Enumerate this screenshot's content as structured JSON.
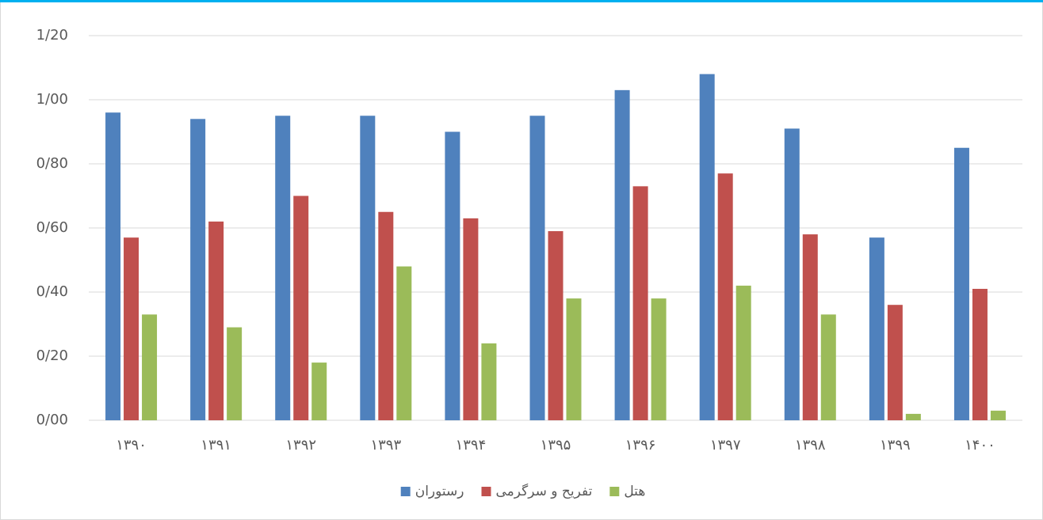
{
  "chart_data": {
    "type": "bar",
    "categories": [
      "۱۳۹۰",
      "۱۳۹۱",
      "۱۳۹۲",
      "۱۳۹۳",
      "۱۳۹۴",
      "۱۳۹۵",
      "۱۳۹۶",
      "۱۳۹۷",
      "۱۳۹۸",
      "۱۳۹۹",
      "۱۴۰۰"
    ],
    "series": [
      {
        "name": "رستوران",
        "color": "#4f81bd",
        "values": [
          0.96,
          0.94,
          0.95,
          0.95,
          0.9,
          0.95,
          1.03,
          1.08,
          0.91,
          0.57,
          0.85
        ]
      },
      {
        "name": "تفریح و سرگرمی",
        "color": "#c0504d",
        "values": [
          0.57,
          0.62,
          0.7,
          0.65,
          0.63,
          0.59,
          0.73,
          0.77,
          0.58,
          0.36,
          0.41
        ]
      },
      {
        "name": "هتل",
        "color": "#9bbb59",
        "values": [
          0.33,
          0.29,
          0.18,
          0.48,
          0.24,
          0.38,
          0.38,
          0.42,
          0.33,
          0.02,
          0.03
        ]
      }
    ],
    "ylim": [
      0,
      1.2
    ],
    "yticks": [
      {
        "value": 0,
        "label": "0/00"
      },
      {
        "value": 0.2,
        "label": "0/20"
      },
      {
        "value": 0.4,
        "label": "0/40"
      },
      {
        "value": 0.6,
        "label": "0/60"
      },
      {
        "value": 0.8,
        "label": "0/80"
      },
      {
        "value": 1.0,
        "label": "1/00"
      },
      {
        "value": 1.2,
        "label": "1/20"
      }
    ],
    "grid": true,
    "legend": "bottom"
  }
}
